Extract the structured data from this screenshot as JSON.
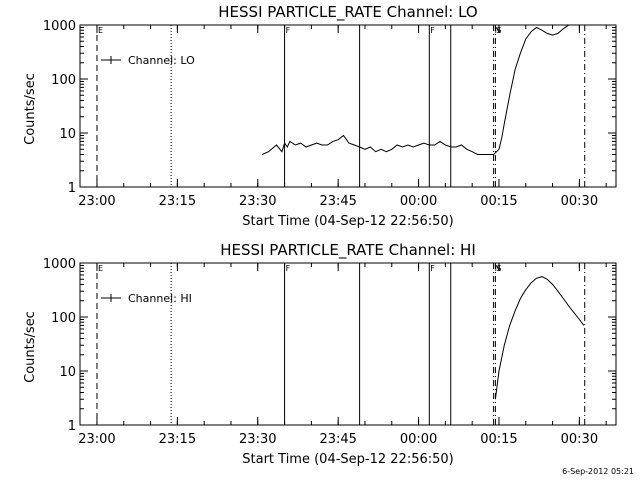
{
  "chart_data": [
    {
      "type": "line",
      "title": "HESSI PARTICLE_RATE Channel: LO",
      "xlabel": "Start Time (04-Sep-12 22:56:50)",
      "ylabel": "Counts/sec",
      "yscale": "log",
      "ylim": [
        1,
        1000
      ],
      "xlim": [
        "22:56:50",
        "00:36:50"
      ],
      "x_ticks": [
        "23:00",
        "23:15",
        "23:30",
        "23:45",
        "00:00",
        "00:15",
        "00:30"
      ],
      "y_ticks": [
        "1",
        "10",
        "100",
        "1000"
      ],
      "legend": "top-left",
      "grid": false,
      "series": [
        {
          "name": "Channel: LO",
          "x": [
            "23:30:50",
            "23:32:00",
            "23:33:30",
            "23:34:30",
            "23:35:00",
            "23:35:30",
            "23:36:00",
            "23:37:00",
            "23:38:00",
            "23:39:00",
            "23:40:00",
            "23:41:00",
            "23:42:00",
            "23:43:00",
            "23:44:00",
            "23:45:00",
            "23:46:00",
            "23:47:00",
            "23:48:00",
            "23:49:00",
            "23:50:00",
            "23:51:00",
            "23:52:00",
            "23:53:00",
            "23:54:00",
            "23:55:00",
            "23:56:00",
            "23:57:00",
            "23:58:00",
            "23:59:00",
            "00:00:00",
            "00:01:00",
            "00:02:00",
            "00:03:00",
            "00:04:00",
            "00:05:00",
            "00:06:00",
            "00:07:00",
            "00:08:00",
            "00:09:00",
            "00:10:00",
            "00:11:00",
            "00:12:00",
            "00:13:00",
            "00:14:00",
            "00:15:00",
            "00:15:30",
            "00:16:00",
            "00:17:00",
            "00:18:00",
            "00:19:00",
            "00:20:00",
            "00:21:00",
            "00:22:00",
            "00:23:00",
            "00:24:00",
            "00:25:00",
            "00:26:00",
            "00:27:00",
            "00:28:00",
            "00:29:00",
            "00:30:00",
            "00:30:50"
          ],
          "values": [
            4,
            4.5,
            6,
            4.5,
            6.5,
            5.5,
            7,
            6,
            6.5,
            5.5,
            6,
            6.5,
            6,
            6,
            7,
            7.5,
            9,
            6.5,
            6,
            5.5,
            5,
            5.5,
            4.5,
            5,
            4.5,
            5,
            6,
            5.5,
            6,
            5.5,
            6,
            6.5,
            6,
            6,
            7,
            6,
            5.5,
            5.5,
            6,
            5,
            4.5,
            4,
            4,
            4,
            4,
            5,
            8,
            15,
            50,
            150,
            300,
            550,
            750,
            900,
            800,
            700,
            650,
            700,
            850,
            1000,
            1000,
            1000,
            1000
          ]
        }
      ],
      "flags": [
        {
          "time": "23:00:00",
          "style": "dashed",
          "label": "E"
        },
        {
          "time": "23:13:50",
          "style": "dotted",
          "label": ""
        },
        {
          "time": "23:35:00",
          "style": "solid",
          "label": "F"
        },
        {
          "time": "23:49:00",
          "style": "solid",
          "label": ""
        },
        {
          "time": "00:02:00",
          "style": "solid",
          "label": "F"
        },
        {
          "time": "00:06:00",
          "style": "solid",
          "label": ""
        },
        {
          "time": "00:14:00",
          "style": "dashdot",
          "label": "N"
        },
        {
          "time": "00:14:20",
          "style": "dashdot",
          "label": "S"
        },
        {
          "time": "00:31:00",
          "style": "dashdot",
          "label": ""
        }
      ]
    },
    {
      "type": "line",
      "title": "HESSI PARTICLE_RATE Channel: HI",
      "xlabel": "Start Time (04-Sep-12 22:56:50)",
      "ylabel": "Counts/sec",
      "yscale": "log",
      "ylim": [
        1,
        1000
      ],
      "xlim": [
        "22:56:50",
        "00:36:50"
      ],
      "x_ticks": [
        "23:00",
        "23:15",
        "23:30",
        "23:45",
        "00:00",
        "00:15",
        "00:30"
      ],
      "y_ticks": [
        "1",
        "10",
        "100",
        "1000"
      ],
      "legend": "top-left",
      "grid": false,
      "series": [
        {
          "name": "Channel: HI",
          "x": [
            "00:14:20",
            "00:15:00",
            "00:16:00",
            "00:17:00",
            "00:18:00",
            "00:19:00",
            "00:20:00",
            "00:21:00",
            "00:22:00",
            "00:23:00",
            "00:24:00",
            "00:25:00",
            "00:26:00",
            "00:27:00",
            "00:28:00",
            "00:29:00",
            "00:30:00",
            "00:30:50"
          ],
          "values": [
            3,
            10,
            30,
            70,
            130,
            220,
            320,
            430,
            520,
            560,
            500,
            400,
            300,
            220,
            160,
            120,
            90,
            70
          ]
        }
      ],
      "flags": [
        {
          "time": "23:00:00",
          "style": "dashed",
          "label": "E"
        },
        {
          "time": "23:13:50",
          "style": "dotted",
          "label": ""
        },
        {
          "time": "23:35:00",
          "style": "solid",
          "label": "F"
        },
        {
          "time": "23:49:00",
          "style": "solid",
          "label": ""
        },
        {
          "time": "00:02:00",
          "style": "solid",
          "label": "F"
        },
        {
          "time": "00:06:00",
          "style": "solid",
          "label": ""
        },
        {
          "time": "00:14:00",
          "style": "dashdot",
          "label": "N"
        },
        {
          "time": "00:14:20",
          "style": "dashdot",
          "label": "S"
        },
        {
          "time": "00:31:00",
          "style": "dashdot",
          "label": ""
        }
      ]
    }
  ],
  "footer": {
    "timestamp": "6-Sep-2012 05:21"
  }
}
